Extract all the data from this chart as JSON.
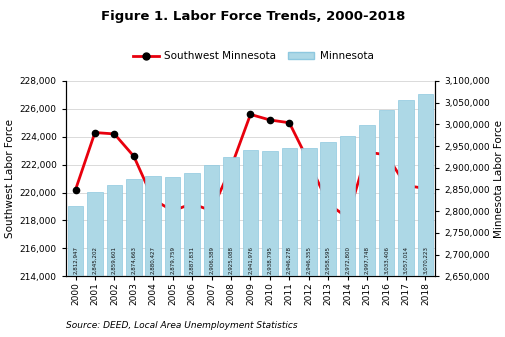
{
  "years": [
    2000,
    2001,
    2002,
    2003,
    2004,
    2005,
    2006,
    2007,
    2008,
    2009,
    2010,
    2011,
    2012,
    2013,
    2014,
    2015,
    2016,
    2017,
    2018
  ],
  "mn_values": [
    2812947,
    2845202,
    2859601,
    2874663,
    2880427,
    2879759,
    2887831,
    2906389,
    2925088,
    2941976,
    2938795,
    2946278,
    2946355,
    2958595,
    2972800,
    2997748,
    3033406,
    3057014,
    3070223
  ],
  "sw_values": [
    220200,
    224300,
    224200,
    222600,
    219500,
    218700,
    219200,
    218700,
    221800,
    225600,
    225200,
    225000,
    222200,
    219200,
    218200,
    222900,
    222700,
    220500,
    220300
  ],
  "mn_labels": [
    "2,812,947",
    "2,845,202",
    "2,859,601",
    "2,874,663",
    "2,880,427",
    "2,879,759",
    "2,887,831",
    "2,906,389",
    "2,925,088",
    "2,941,976",
    "2,938,795",
    "2,946,278",
    "2,946,355",
    "2,958,595",
    "2,972,800",
    "2,997,748",
    "3,033,406",
    "3,057,014",
    "3,070,223"
  ],
  "title": "Figure 1. Labor Force Trends, 2000-2018",
  "ylabel_left": "Southwest Labor Force",
  "ylabel_right": "Minnesota Labor Force",
  "source": "Source: DEED, Local Area Unemployment Statistics",
  "bar_color": "#add8e6",
  "bar_edge_color": "#8ec8df",
  "line_color": "#e8000d",
  "marker_color": "#000000",
  "ylim_left": [
    214000,
    228000
  ],
  "ylim_right": [
    2650000,
    3100000
  ],
  "yticks_left": [
    214000,
    216000,
    218000,
    220000,
    222000,
    224000,
    226000,
    228000
  ],
  "yticks_right": [
    2650000,
    2700000,
    2750000,
    2800000,
    2850000,
    2900000,
    2950000,
    3000000,
    3050000,
    3100000
  ],
  "legend_sw": "Southwest Minnesota",
  "legend_mn": "Minnesota"
}
